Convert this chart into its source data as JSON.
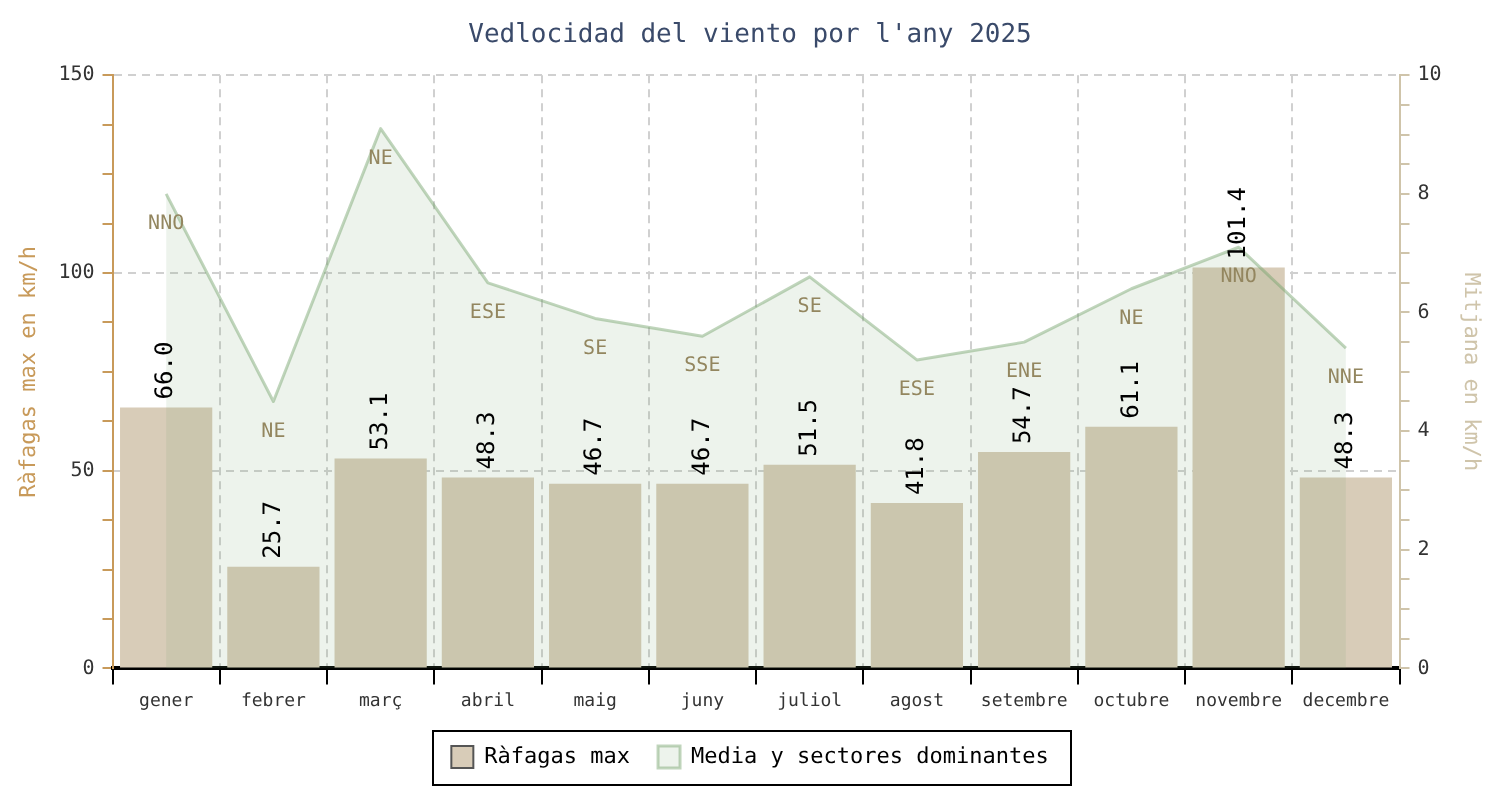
{
  "chart_data": {
    "type": "bar",
    "title": "Vedlocidad del viento por l'any 2025",
    "ylabel": "Ràfagas max en km/h",
    "y2label": "Mitjana en km/h",
    "categories": [
      "gener",
      "febrer",
      "març",
      "abril",
      "maig",
      "juny",
      "juliol",
      "agost",
      "setembre",
      "octubre",
      "novembre",
      "decembre"
    ],
    "series": [
      {
        "name": "Ràfagas max",
        "color": "#d8ccb8",
        "values": [
          66.0,
          25.7,
          53.1,
          48.3,
          46.7,
          46.7,
          51.5,
          41.8,
          54.7,
          61.1,
          101.4,
          48.3
        ],
        "value_labels": [
          "66.0",
          "25.7",
          "53.1",
          "48.3",
          "46.7",
          "46.7",
          "51.5",
          "41.8",
          "54.7",
          "61.1",
          "101.4",
          "48.3"
        ]
      },
      {
        "name": "Media y sectores dominantes",
        "type": "area",
        "axis": "y2",
        "color": "#73a16b",
        "values": [
          8.0,
          4.5,
          9.1,
          6.5,
          5.9,
          5.6,
          6.6,
          5.2,
          5.5,
          6.4,
          7.1,
          5.4
        ],
        "value_labels": [
          "NNO",
          "NE",
          "NE",
          "ESE",
          "SE",
          "SSE",
          "SE",
          "ESE",
          "ENE",
          "NE",
          "NNO",
          "NNE"
        ]
      }
    ],
    "ylim": [
      0,
      150
    ],
    "yticks": [
      0,
      {
        "value": 12.5,
        "label": null
      },
      {
        "value": 25,
        "label": null
      },
      {
        "value": 37.5,
        "label": null
      },
      50,
      {
        "value": 62.5,
        "label": null
      },
      {
        "value": 75,
        "label": null
      },
      {
        "value": 87.5,
        "label": null
      },
      100,
      {
        "value": 112.5,
        "label": null
      },
      {
        "value": 125,
        "label": null
      },
      {
        "value": 137.5,
        "label": null
      },
      150
    ],
    "y2lim": [
      0,
      10
    ],
    "y2ticks": [
      0,
      {
        "value": 0.5,
        "label": null
      },
      {
        "value": 1,
        "label": null
      },
      {
        "value": 1.5,
        "label": null
      },
      2,
      {
        "value": 2.5,
        "label": null
      },
      {
        "value": 3,
        "label": null
      },
      {
        "value": 3.5,
        "label": null
      },
      4,
      {
        "value": 4.5,
        "label": null
      },
      {
        "value": 5,
        "label": null
      },
      {
        "value": 5.5,
        "label": null
      },
      6,
      {
        "value": 6.5,
        "label": null
      },
      {
        "value": 7,
        "label": null
      },
      {
        "value": 7.5,
        "label": null
      },
      8,
      {
        "value": 8.5,
        "label": null
      },
      {
        "value": 9,
        "label": null
      },
      {
        "value": 9.5,
        "label": null
      },
      10
    ],
    "grid": true,
    "legend": "bottom"
  }
}
